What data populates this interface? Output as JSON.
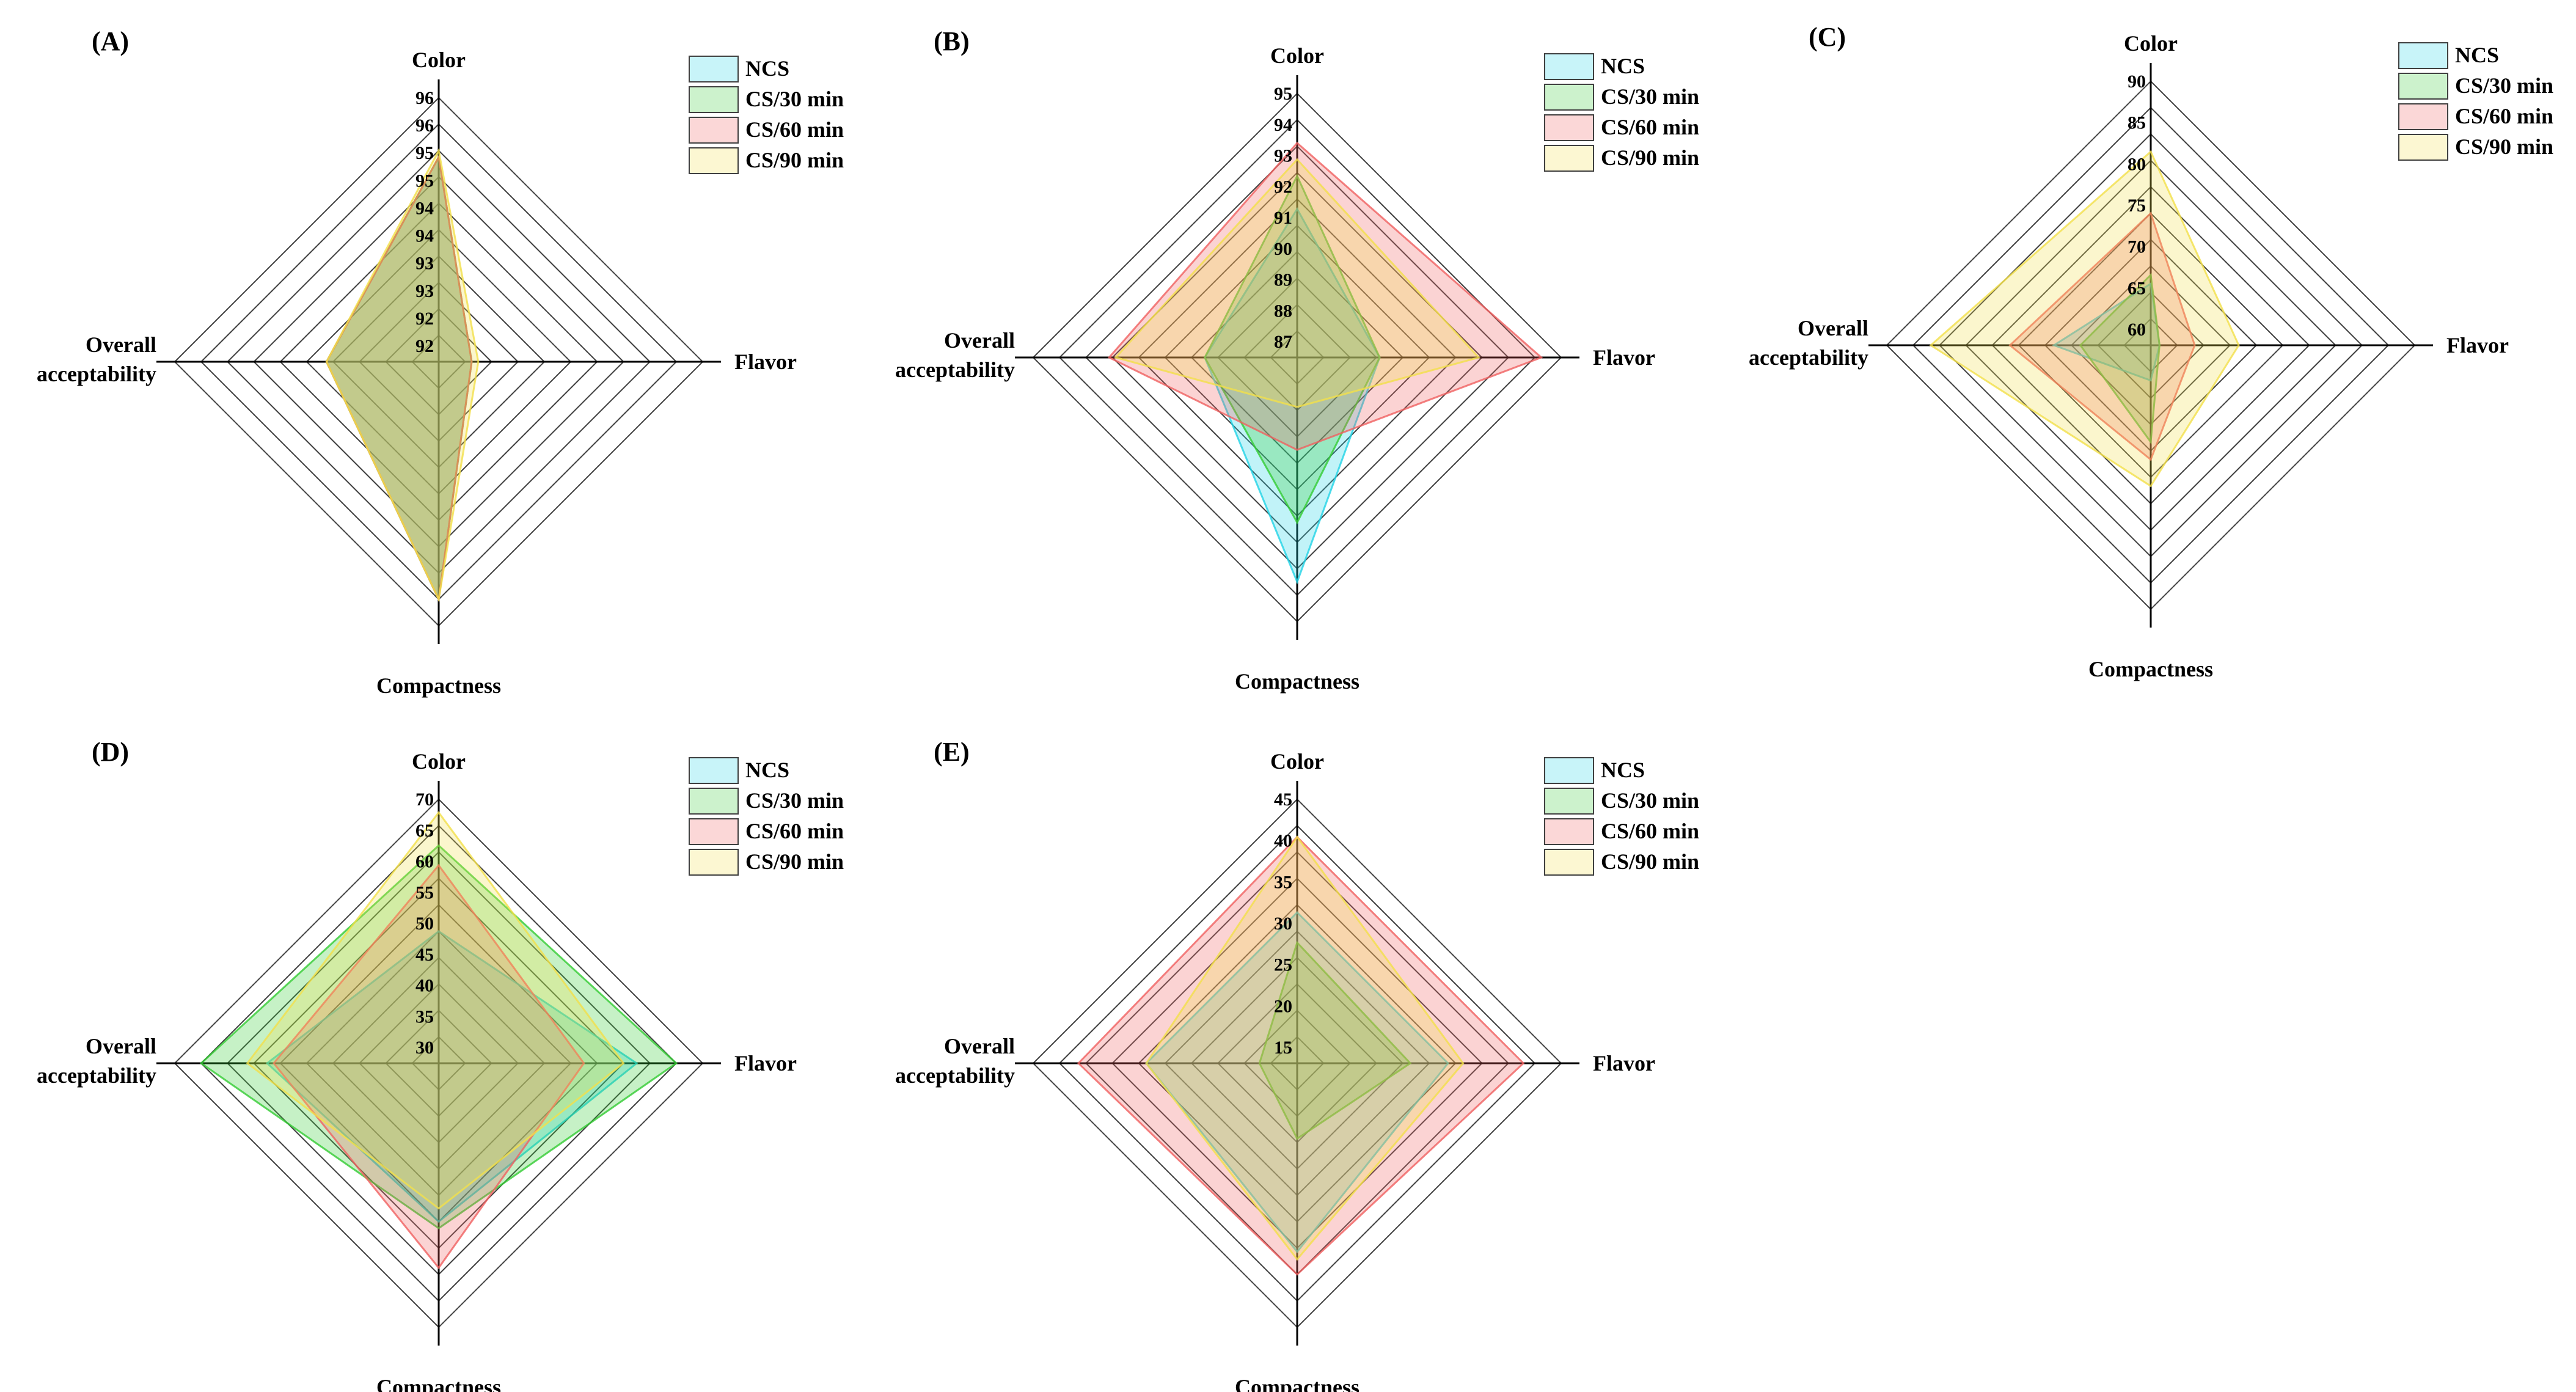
{
  "figure": {
    "colors": {
      "NCS": "#22d3e6",
      "CS/30 min": "#33cc33",
      "CS/60 min": "#f06060",
      "CS/90 min": "#f2e04a"
    }
  },
  "chart_data": [
    {
      "type": "radar",
      "panel": "(A)",
      "axes": [
        "Color",
        "Flavor",
        "Compactness",
        "Overall acceptability"
      ],
      "ticks": [
        "92",
        "92",
        "93",
        "93",
        "94",
        "94",
        "95",
        "95",
        "96",
        "96"
      ],
      "range": [
        92,
        96
      ],
      "legend": [
        "NCS",
        "CS/30 min",
        "CS/60 min",
        "CS/90 min"
      ],
      "legend_position": "top-right",
      "series": [
        {
          "name": "NCS",
          "values": [
            95.1,
            92.5,
            95.6,
            93.7
          ]
        },
        {
          "name": "CS/30 min",
          "values": [
            95.1,
            92.5,
            95.6,
            93.7
          ]
        },
        {
          "name": "CS/60 min",
          "values": [
            95.1,
            92.5,
            95.6,
            93.7
          ]
        },
        {
          "name": "CS/90 min",
          "values": [
            95.2,
            92.6,
            95.6,
            93.7
          ]
        }
      ]
    },
    {
      "type": "radar",
      "panel": "(B)",
      "axes": [
        "Color",
        "Flavor",
        "Compactness",
        "Overall acceptability"
      ],
      "ticks": [
        "87",
        "88",
        "89",
        "90",
        "91",
        "92",
        "93",
        "94",
        "95"
      ],
      "range": [
        87,
        95
      ],
      "legend": [
        "NCS",
        "CS/30 min",
        "CS/60 min",
        "CS/90 min"
      ],
      "legend_position": "top-right",
      "series": [
        {
          "name": "NCS",
          "values": [
            91.5,
            89.5,
            93.8,
            89.8
          ]
        },
        {
          "name": "CS/30 min",
          "values": [
            92.5,
            89.5,
            92.0,
            89.8
          ]
        },
        {
          "name": "CS/60 min",
          "values": [
            93.5,
            94.4,
            89.8,
            92.7
          ]
        },
        {
          "name": "CS/90 min",
          "values": [
            93.0,
            92.5,
            88.5,
            92.5
          ]
        }
      ]
    },
    {
      "type": "radar",
      "panel": "(C)",
      "axes": [
        "Color",
        "Flavor",
        "Compactness",
        "Overall acceptability"
      ],
      "ticks": [
        "60",
        "65",
        "70",
        "75",
        "80",
        "85",
        "90"
      ],
      "range": [
        60,
        90
      ],
      "legend": [
        "NCS",
        "CS/30 min",
        "CS/60 min",
        "CS/90 min"
      ],
      "legend_position": "top-right",
      "series": [
        {
          "name": "NCS",
          "values": [
            67,
            61,
            64,
            71
          ]
        },
        {
          "name": "CS/30 min",
          "values": [
            68,
            61,
            71,
            68
          ]
        },
        {
          "name": "CS/60 min",
          "values": [
            75,
            65,
            73,
            76
          ]
        },
        {
          "name": "CS/90 min",
          "values": [
            82,
            70,
            76,
            85
          ]
        }
      ]
    },
    {
      "type": "radar",
      "panel": "(D)",
      "axes": [
        "Color",
        "Flavor",
        "Compactness",
        "Overall acceptability"
      ],
      "ticks": [
        "30",
        "35",
        "40",
        "45",
        "50",
        "55",
        "60",
        "65",
        "70"
      ],
      "range": [
        30,
        70
      ],
      "legend": [
        "NCS",
        "CS/30 min",
        "CS/60 min",
        "CS/90 min"
      ],
      "legend_position": "top-right",
      "series": [
        {
          "name": "NCS",
          "values": [
            50,
            60,
            54,
            56
          ]
        },
        {
          "name": "CS/30 min",
          "values": [
            63,
            66,
            55,
            66
          ]
        },
        {
          "name": "CS/60 min",
          "values": [
            60,
            52,
            61,
            55
          ]
        },
        {
          "name": "CS/90 min",
          "values": [
            68,
            58,
            52,
            59
          ]
        }
      ]
    },
    {
      "type": "radar",
      "panel": "(E)",
      "axes": [
        "Color",
        "Flavor",
        "Compactness",
        "Overall acceptability"
      ],
      "ticks": [
        "15",
        "20",
        "25",
        "30",
        "35",
        "40",
        "45"
      ],
      "range": [
        10,
        45
      ],
      "legend": [
        "NCS",
        "CS/30 min",
        "CS/60 min",
        "CS/90 min"
      ],
      "legend_position": "top-right",
      "series": [
        {
          "name": "NCS",
          "values": [
            30,
            30,
            35,
            30
          ]
        },
        {
          "name": "CS/30 min",
          "values": [
            26,
            25,
            20,
            15
          ]
        },
        {
          "name": "CS/60 min",
          "values": [
            40,
            40,
            38,
            39
          ]
        },
        {
          "name": "CS/90 min",
          "values": [
            40,
            32,
            36,
            30
          ]
        }
      ]
    }
  ]
}
